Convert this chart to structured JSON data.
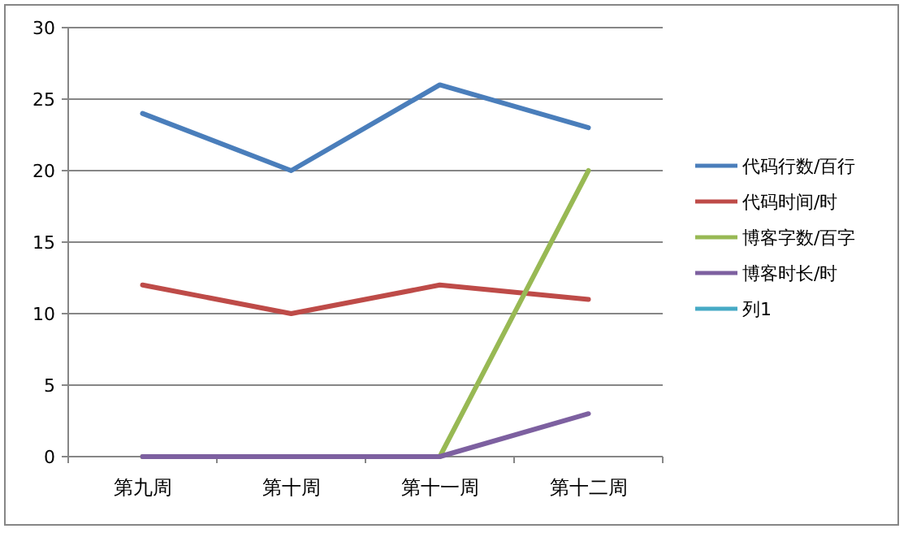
{
  "chart_data": {
    "type": "line",
    "categories": [
      "第九周",
      "第十周",
      "第十一周",
      "第十二周"
    ],
    "series": [
      {
        "name": "代码行数/百行",
        "color": "#4a7ebb",
        "values": [
          24,
          20,
          26,
          23
        ]
      },
      {
        "name": "代码时间/时",
        "color": "#be4b48",
        "values": [
          12,
          10,
          12,
          11
        ]
      },
      {
        "name": "博客字数/百字",
        "color": "#98b954",
        "values": [
          0,
          0,
          0,
          20
        ]
      },
      {
        "name": "博客时长/时",
        "color": "#7d60a0",
        "values": [
          0,
          0,
          0,
          3
        ]
      },
      {
        "name": "列1",
        "color": "#46aac5",
        "values": [
          null,
          null,
          null,
          null
        ]
      }
    ],
    "ylim": [
      0,
      30
    ],
    "yticks": [
      0,
      5,
      10,
      15,
      20,
      25,
      30
    ],
    "grid": "y",
    "legend": "right",
    "marker": "none",
    "line_style": "solid"
  }
}
